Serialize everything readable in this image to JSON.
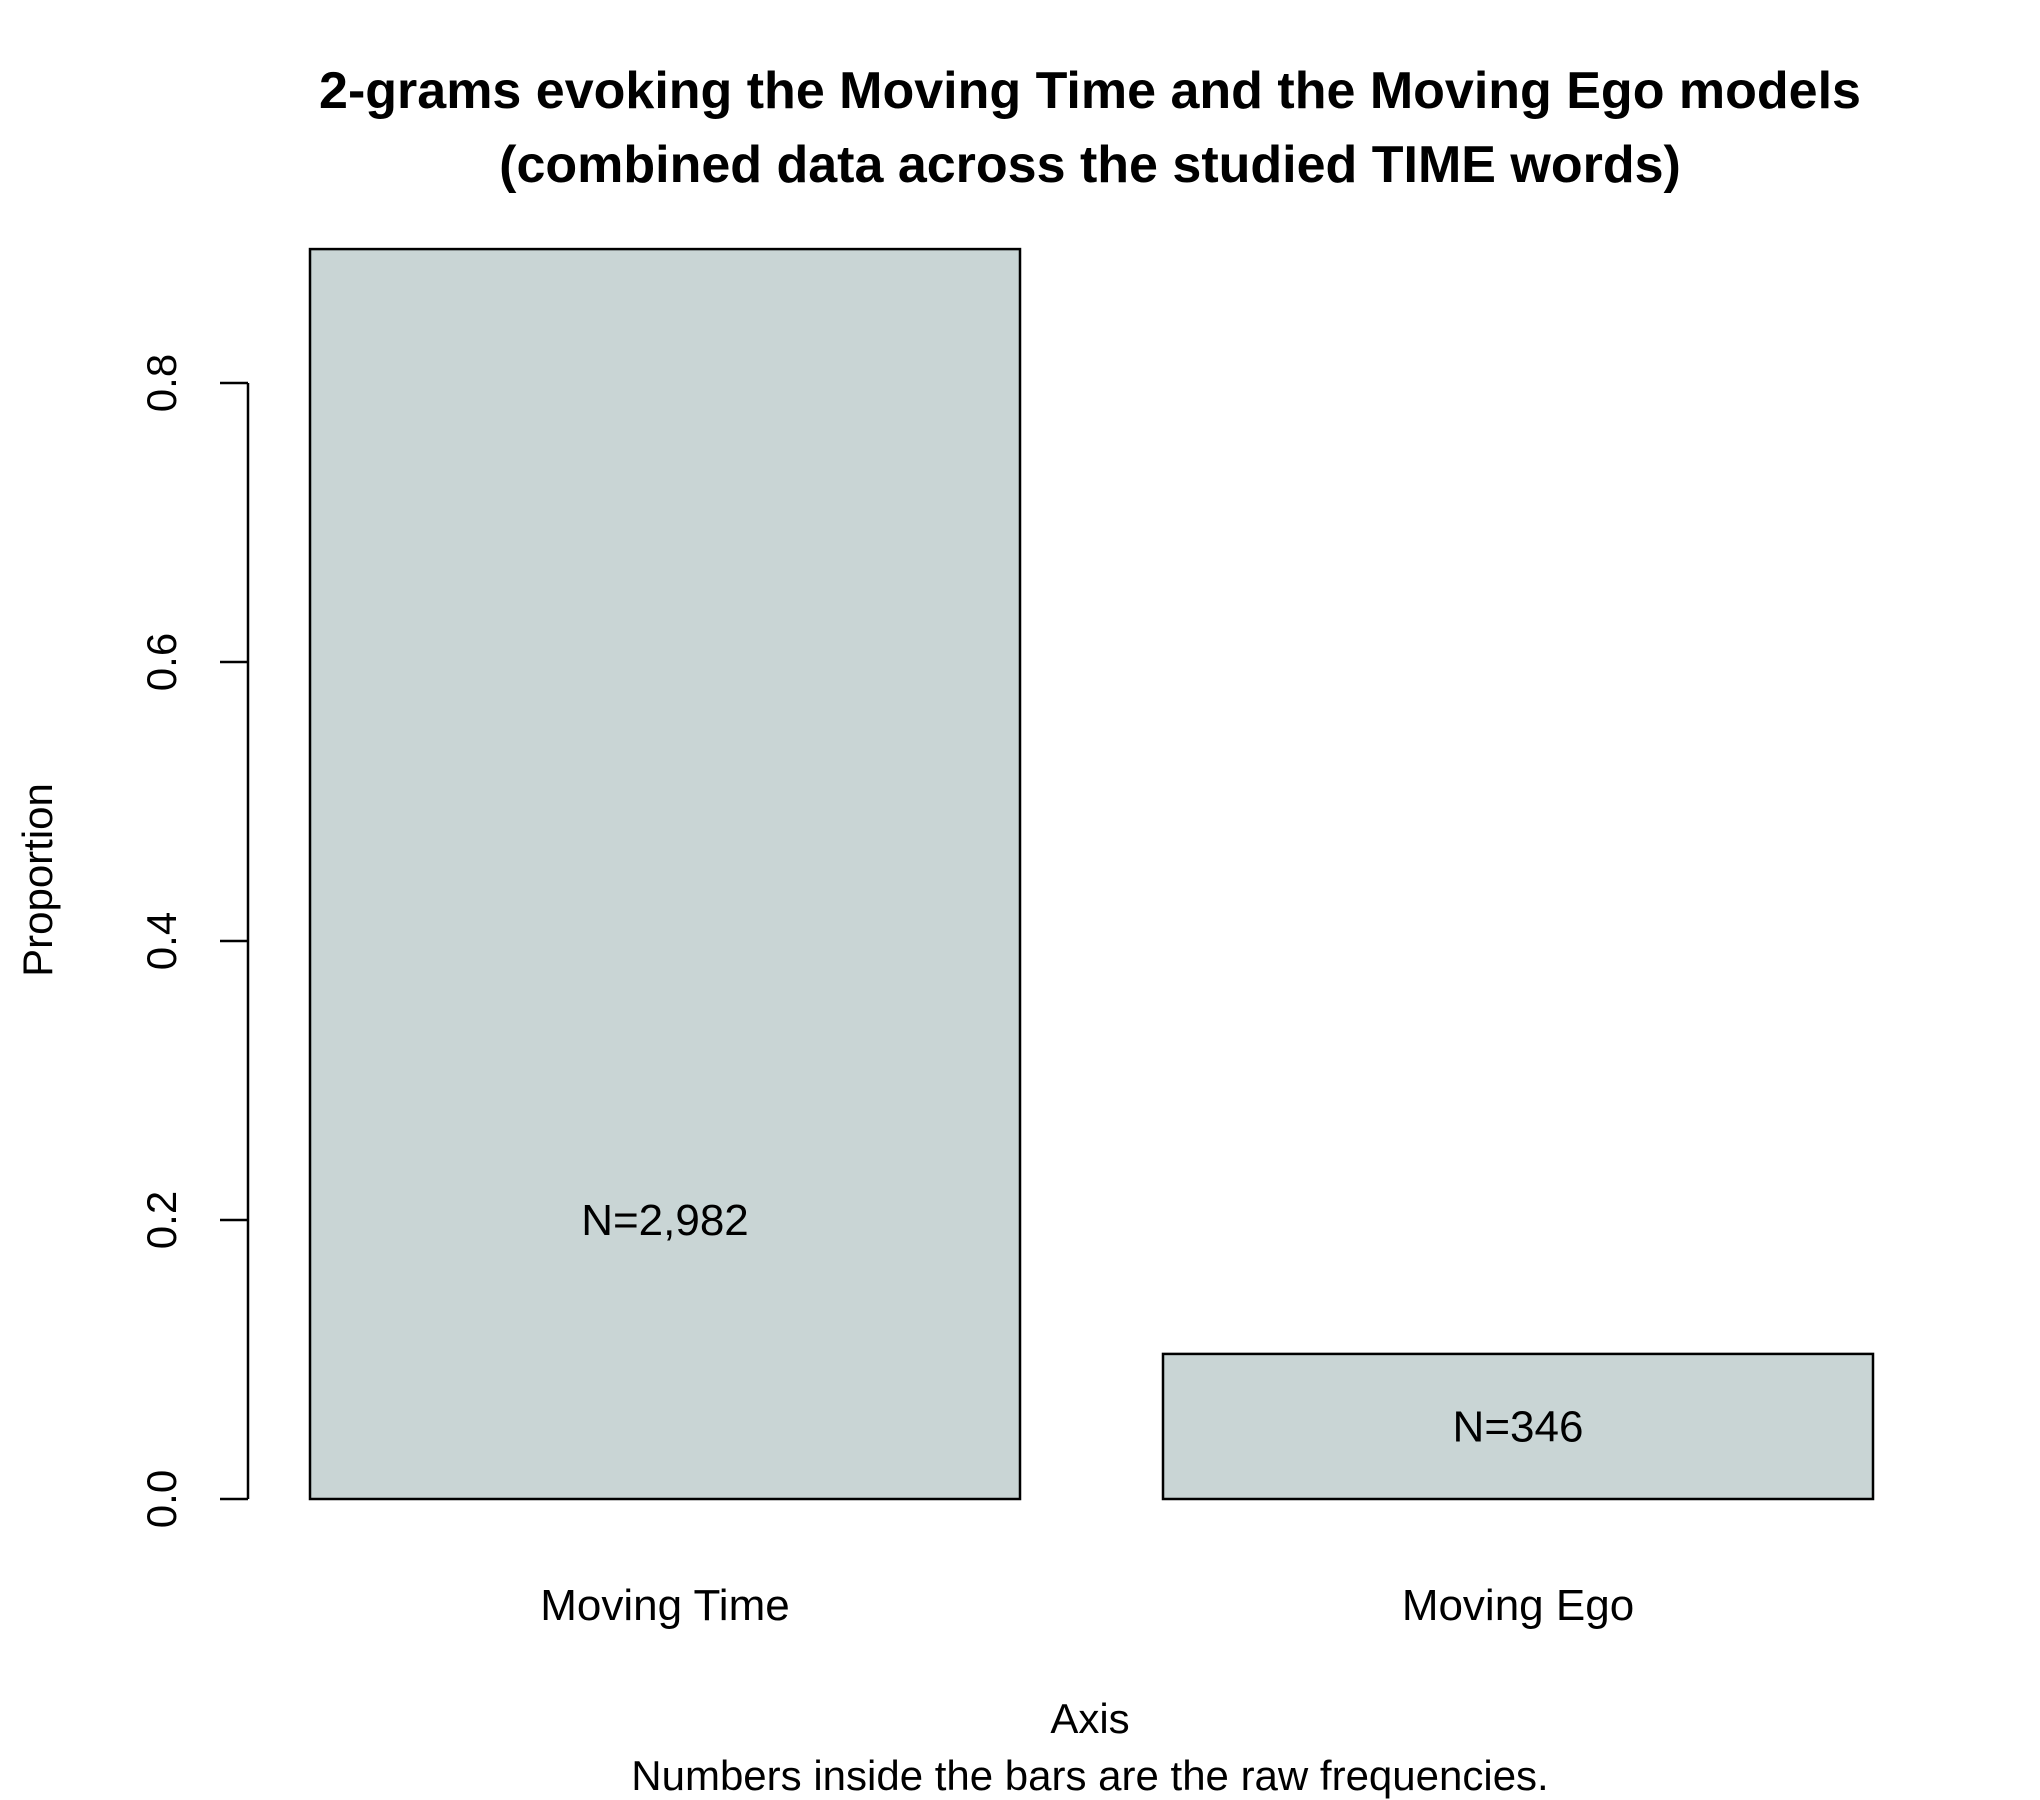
{
  "chart_data": {
    "type": "bar",
    "title_lines": [
      "2-grams evoking the Moving Time and the Moving Ego models",
      "(combined data across the studied TIME words)"
    ],
    "xlabel": "Axis",
    "ylabel": "Proportion",
    "note": "Numbers inside the bars are the raw frequencies.",
    "categories": [
      "Moving Time",
      "Moving Ego"
    ],
    "values": [
      0.896,
      0.104
    ],
    "bar_labels": [
      "N=2,982",
      "N=346"
    ],
    "bar_label_y": [
      0.2,
      0.052
    ],
    "yticks": [
      0.0,
      0.2,
      0.4,
      0.6,
      0.8
    ],
    "ytick_labels": [
      "0.0",
      "0.2",
      "0.4",
      "0.6",
      "0.8"
    ],
    "bar_color": "#c9d5d5",
    "grid": false,
    "legend": "none"
  }
}
